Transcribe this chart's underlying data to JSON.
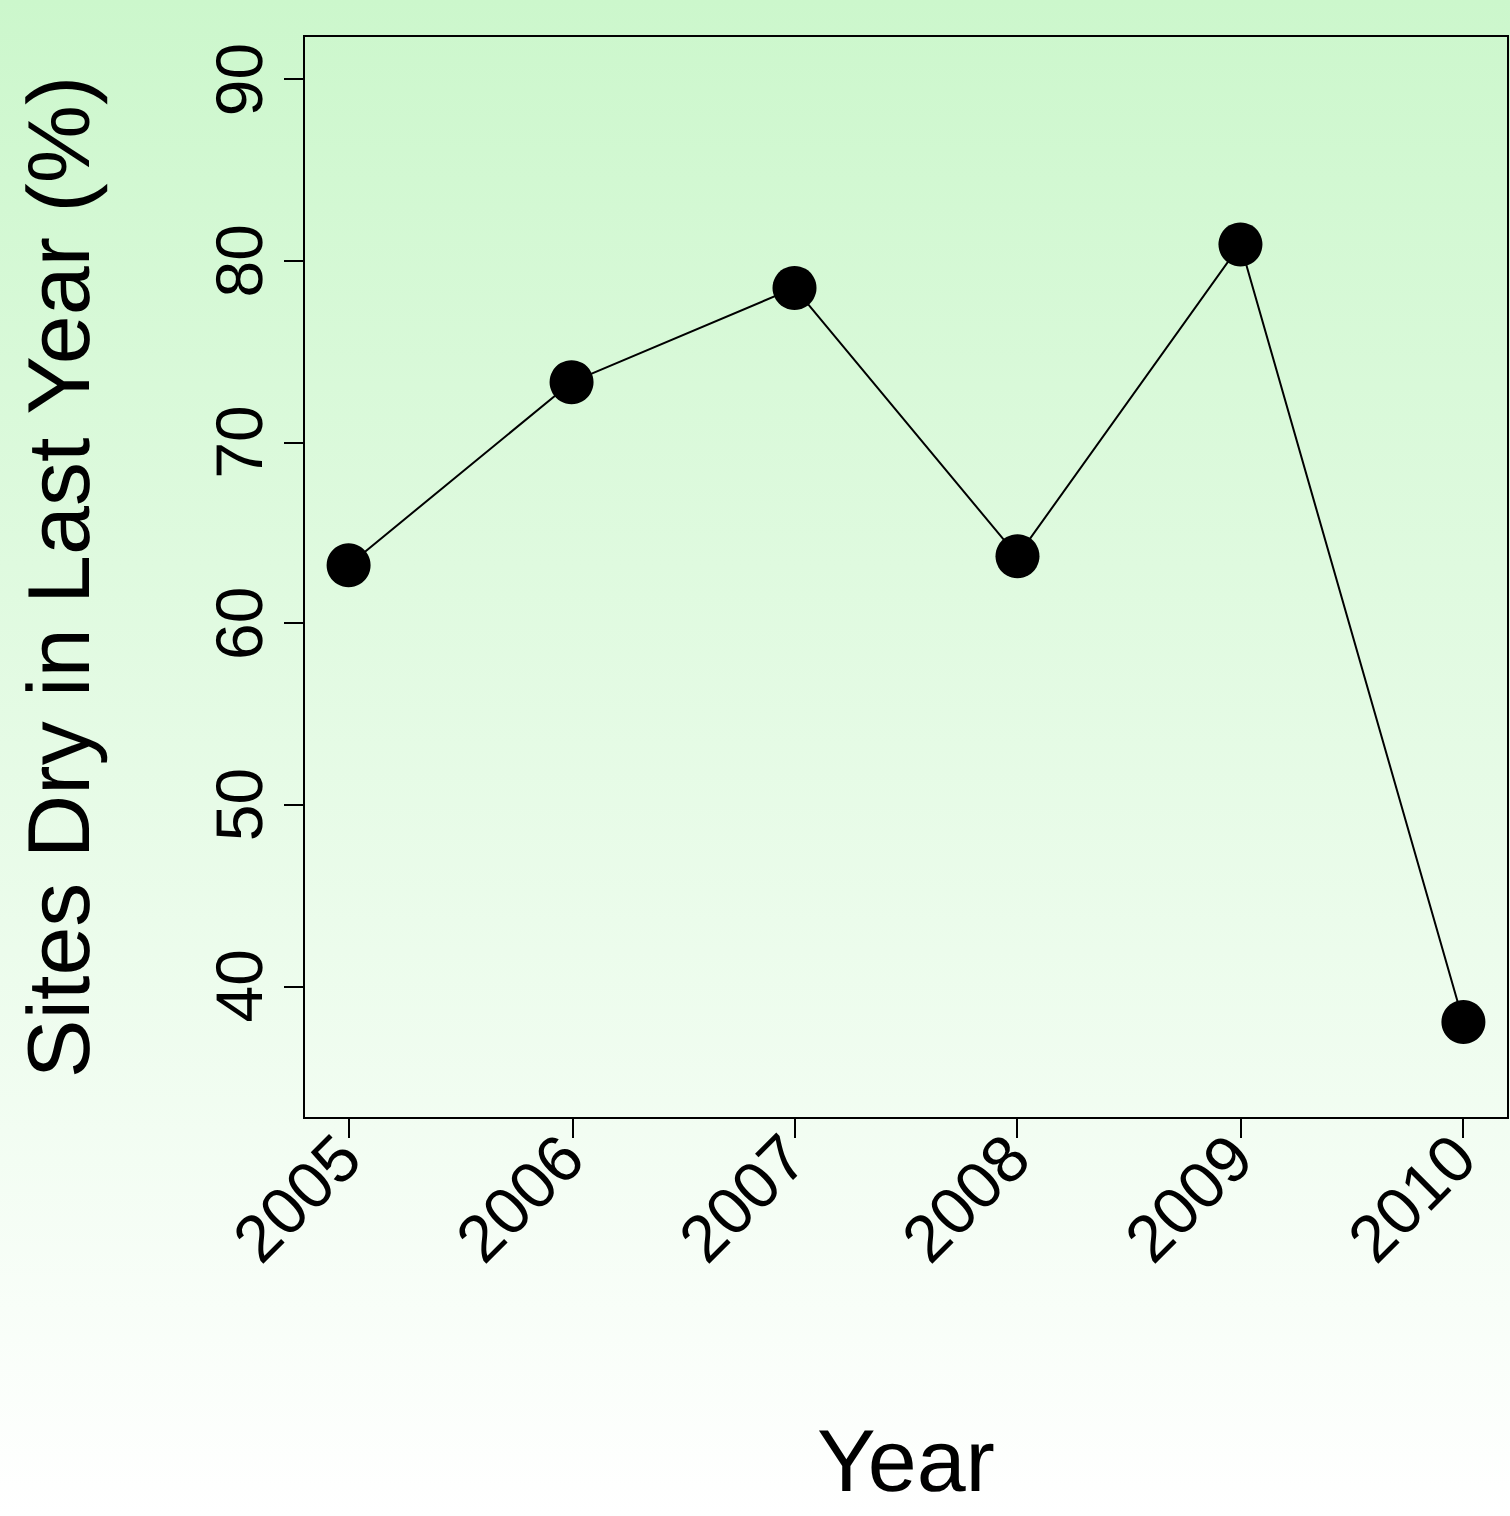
{
  "chart_data": {
    "type": "line",
    "xlabel": "Year",
    "ylabel": "Sites Dry in Last Year (%)",
    "x": [
      2005,
      2006,
      2007,
      2008,
      2009,
      2010
    ],
    "series": [
      {
        "color": "#000000",
        "values": [
          63.2,
          73.3,
          78.5,
          63.7,
          80.9,
          38.0
        ]
      }
    ],
    "xlim": [
      2004.8,
      2010.2
    ],
    "xticks": [
      2005,
      2006,
      2007,
      2008,
      2009,
      2010
    ],
    "ylim": [
      32.7,
      92.4
    ],
    "yticks": [
      40,
      50,
      60,
      70,
      80,
      90
    ],
    "marker": "circle",
    "line_style": "solid",
    "grid": false
  }
}
